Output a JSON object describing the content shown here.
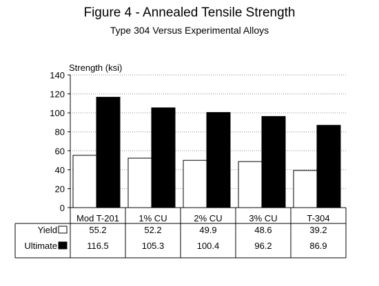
{
  "chart_data": {
    "type": "bar",
    "title": "Figure 4 - Annealed Tensile Strength",
    "subtitle": "Type 304 Versus Experimental Alloys",
    "ylabel": "Strength (ksi)",
    "xlabel": "",
    "ylim": [
      0,
      140
    ],
    "yticks": [
      0,
      20,
      40,
      60,
      80,
      100,
      120,
      140
    ],
    "grid": true,
    "categories": [
      "Mod T-201",
      "1% CU",
      "2% CU",
      "3% CU",
      "T-304"
    ],
    "series": [
      {
        "name": "Yield",
        "color": "#ffffff",
        "values": [
          55.2,
          52.2,
          49.9,
          48.6,
          39.2
        ],
        "labels": [
          "55.2",
          "52.2",
          "49.9",
          "48.6",
          "39.2"
        ]
      },
      {
        "name": "Ultimate",
        "color": "#000000",
        "values": [
          116.5,
          105.3,
          100.4,
          96.2,
          86.9
        ],
        "labels": [
          "116.5",
          "105.3",
          "100.4",
          "96.2",
          "86.9"
        ]
      }
    ],
    "legend": "data-table"
  }
}
